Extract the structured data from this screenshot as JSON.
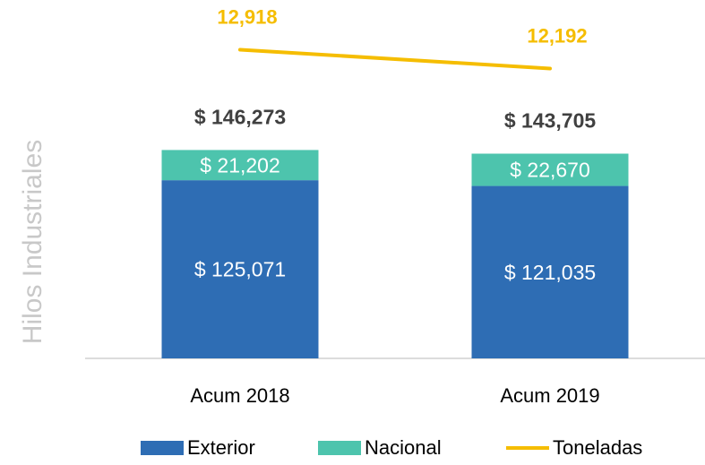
{
  "chart_data": {
    "type": "bar",
    "stacked": true,
    "y_axis_label": "Hilos Industriales",
    "categories": [
      "Acum 2018",
      "Acum 2019"
    ],
    "series": [
      {
        "name": "Exterior",
        "color": "#2e6db4",
        "values": [
          125071,
          121035
        ],
        "value_labels": [
          "$ 125,071",
          "$ 121,035"
        ]
      },
      {
        "name": "Nacional",
        "color": "#4dc4ad",
        "values": [
          21202,
          22670
        ],
        "value_labels": [
          "$ 21,202",
          "$ 22,670"
        ]
      },
      {
        "name": "Toneladas",
        "color": "#f5bd00",
        "type": "line",
        "axis": "y2",
        "values": [
          12918,
          12192
        ],
        "value_labels": [
          "12,918",
          "12,192"
        ]
      }
    ],
    "total_labels": [
      "$ 146,273",
      "$ 143,705"
    ],
    "ylim": [
      0,
      200000
    ],
    "y2lim": [
      1000,
      12000
    ],
    "legend": "bottom"
  }
}
